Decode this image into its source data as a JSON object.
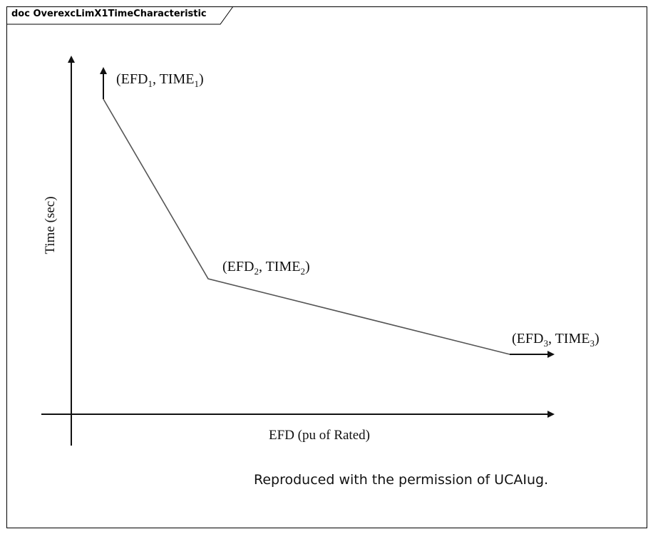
{
  "document": {
    "title": "doc OverexcLimX1TimeCharacteristic"
  },
  "diagram": {
    "y_axis_label": "Time (sec)",
    "x_axis_label": "EFD (pu of Rated)",
    "points": [
      {
        "name": "point-1",
        "label_prefix": "(EFD",
        "sub1": "1",
        "label_mid": ", TIME",
        "sub2": "1",
        "label_suffix": ")"
      },
      {
        "name": "point-2",
        "label_prefix": "(EFD",
        "sub1": "2",
        "label_mid": ", TIME",
        "sub2": "2",
        "label_suffix": ")"
      },
      {
        "name": "point-3",
        "label_prefix": "(EFD",
        "sub1": "3",
        "label_mid": ", TIME",
        "sub2": "3",
        "label_suffix": ")"
      }
    ],
    "line_color": "#555555",
    "axis_color": "#111111"
  },
  "footer": {
    "credit": "Reproduced with the permission of UCAIug."
  }
}
